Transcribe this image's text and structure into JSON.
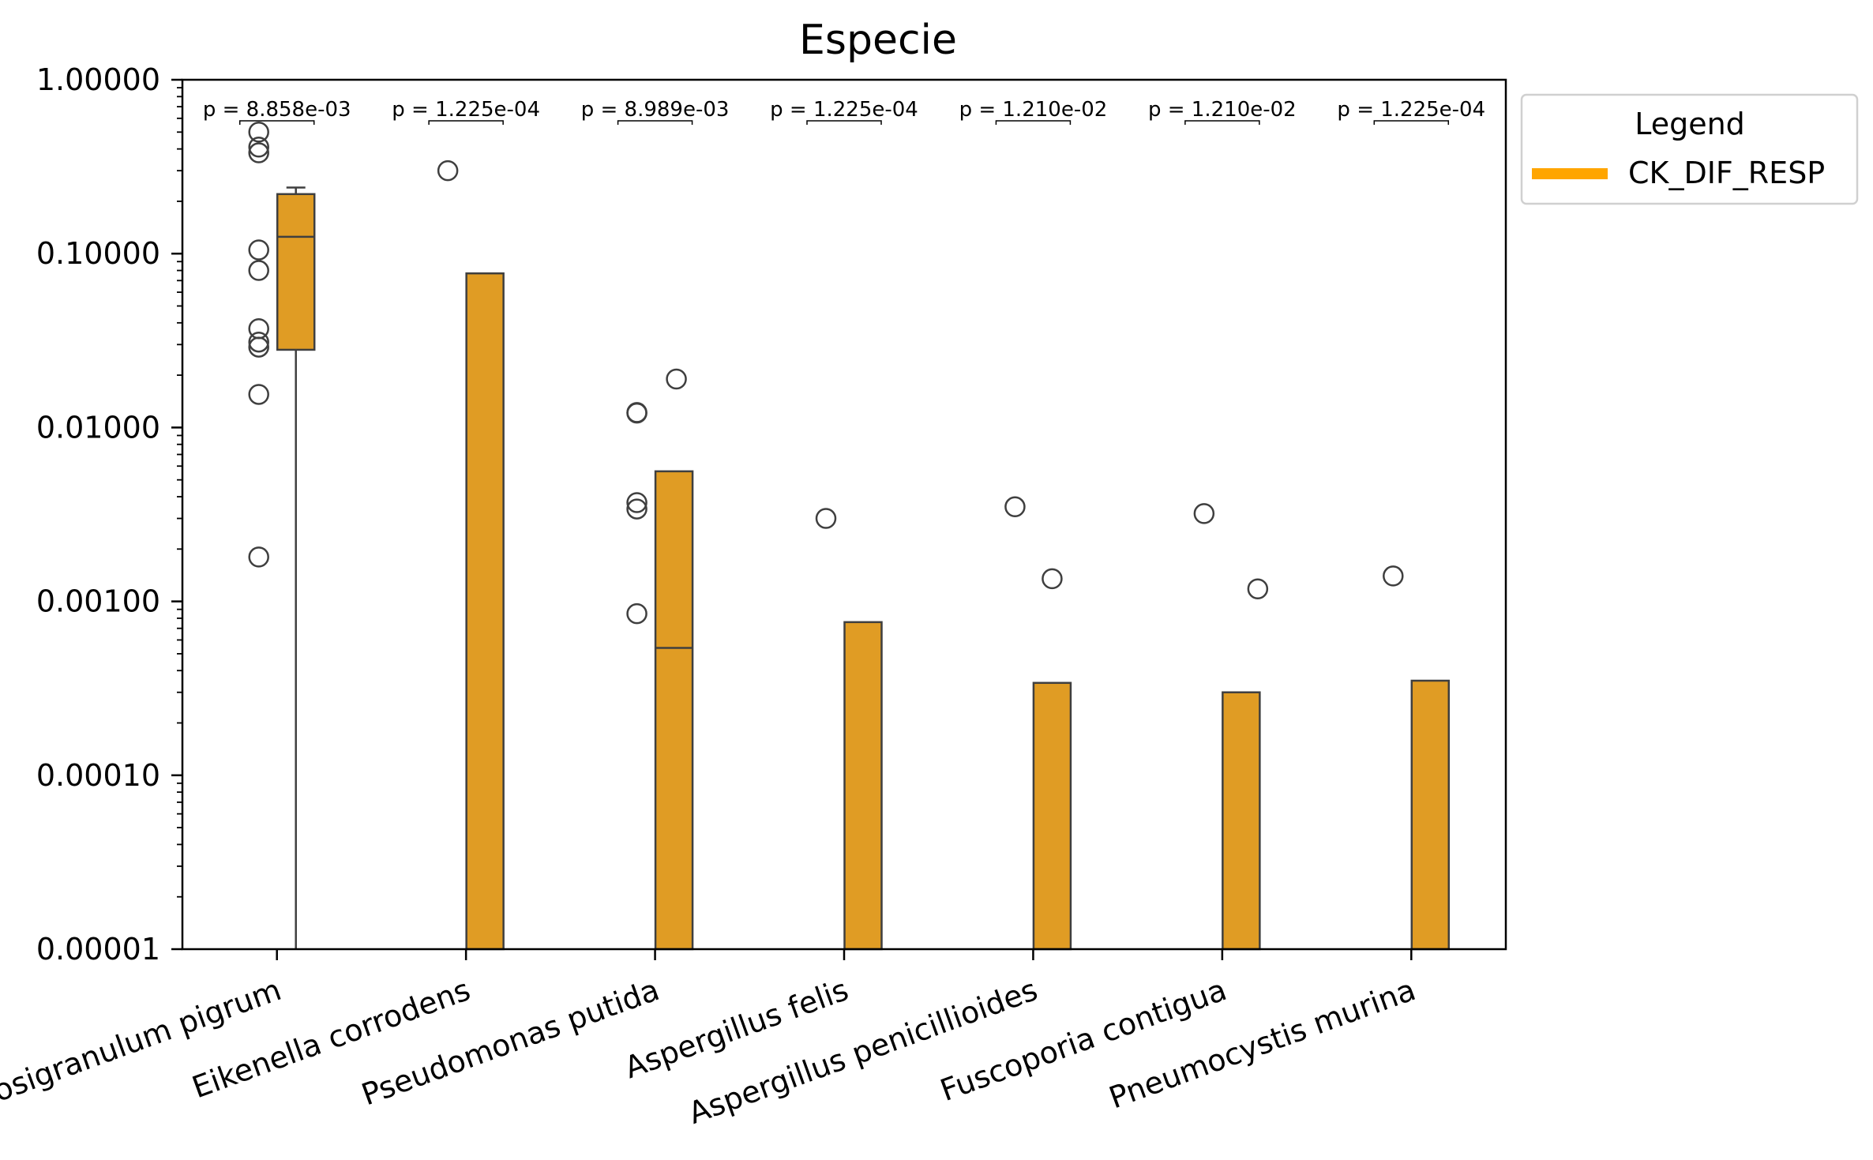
{
  "chart_data": {
    "type": "box",
    "title": "Especie",
    "xlabel": "",
    "ylabel": "",
    "yscale": "log",
    "ylim": [
      1e-05,
      1.0
    ],
    "y_ticks": [
      "1.00000",
      "0.10000",
      "0.01000",
      "0.00100",
      "0.00010",
      "0.00001"
    ],
    "y_tick_values": [
      1.0,
      0.1,
      0.01,
      0.001,
      0.0001,
      1e-05
    ],
    "grid": false,
    "legend": {
      "title": "Legend",
      "entries": [
        {
          "label": "CK_DIF_RESP",
          "color": "#ffa500"
        }
      ],
      "placement": "outside-top-right"
    },
    "categories": [
      "Dolosigranulum pigrum",
      "Eikenella corrodens",
      "Pseudomonas putida",
      "Aspergillus felis",
      "Aspergillus penicillioides",
      "Fuscoporia contigua",
      "Pneumocystis murina"
    ],
    "series": [
      {
        "name": "CK_DIF_RESP",
        "color": "#e09c24",
        "boxes": [
          {
            "whisker_low": 1e-05,
            "q1": 0.028,
            "median": 0.125,
            "q3": 0.22,
            "whisker_high": 0.24,
            "outliers": [
              0.5,
              0.41,
              0.38,
              0.105,
              0.08,
              0.037,
              0.031,
              0.029,
              0.0155,
              0.0018
            ]
          },
          {
            "whisker_low": 1e-05,
            "q1": 1e-05,
            "median": 1e-05,
            "q3": 0.077,
            "whisker_high": 0.077,
            "outliers": [
              0.3
            ]
          },
          {
            "whisker_low": 1e-05,
            "q1": 1e-05,
            "median": 0.00054,
            "q3": 0.0056,
            "whisker_high": 0.0056,
            "outliers": [
              0.019,
              0.0122,
              0.0121,
              0.0037,
              0.0034,
              0.00085
            ]
          },
          {
            "whisker_low": 1e-05,
            "q1": 1e-05,
            "median": 1e-05,
            "q3": 0.00076,
            "whisker_high": 0.00076,
            "outliers": [
              0.003
            ]
          },
          {
            "whisker_low": 1e-05,
            "q1": 1e-05,
            "median": 1e-05,
            "q3": 0.00034,
            "whisker_high": 0.00034,
            "outliers": [
              0.0035,
              0.00135
            ]
          },
          {
            "whisker_low": 1e-05,
            "q1": 1e-05,
            "median": 1e-05,
            "q3": 0.0003,
            "whisker_high": 0.0003,
            "outliers": [
              0.0032,
              0.00118
            ]
          },
          {
            "whisker_low": 1e-05,
            "q1": 1e-05,
            "median": 1e-05,
            "q3": 0.00035,
            "whisker_high": 0.00035,
            "outliers": [
              0.0014
            ]
          }
        ]
      }
    ],
    "annotations": [
      {
        "category": "Dolosigranulum pigrum",
        "text": "p = 8.858e-03"
      },
      {
        "category": "Eikenella corrodens",
        "text": "p = 1.225e-04"
      },
      {
        "category": "Pseudomonas putida",
        "text": "p = 8.989e-03"
      },
      {
        "category": "Aspergillus felis",
        "text": "p = 1.225e-04"
      },
      {
        "category": "Aspergillus penicillioides",
        "text": "p = 1.210e-02"
      },
      {
        "category": "Fuscoporia contigua",
        "text": "p = 1.210e-02"
      },
      {
        "category": "Pneumocystis murina",
        "text": "p = 1.225e-04"
      }
    ]
  }
}
